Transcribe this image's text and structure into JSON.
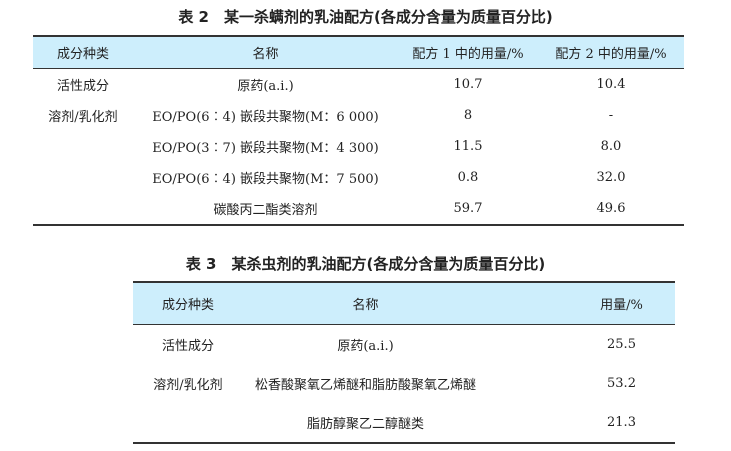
{
  "table2": {
    "title": "表 2　某一杀螨剂的乳油配方(各成分含量为质量百分比)",
    "headers": [
      "成分种类",
      "名称",
      "配方 1 中的用量/%",
      "配方 2 中的用量/%"
    ],
    "rows": [
      [
        "活性成分",
        "原药(a.i.)",
        "10.7",
        "10.4"
      ],
      [
        "溶剂/乳化剂",
        "EO/PO(6︰4) 嵌段共聚物(M：6 000)",
        "8",
        "-"
      ],
      [
        "",
        "EO/PO(3︰7) 嵌段共聚物(M：4 300)",
        "11.5",
        "8.0"
      ],
      [
        "",
        "EO/PO(6︰4) 嵌段共聚物(M：7 500)",
        "0.8",
        "32.0"
      ],
      [
        "",
        "碳酸丙二酯类溶剂",
        "59.7",
        "49.6"
      ]
    ]
  },
  "table3": {
    "title": "表 3　某杀虫剂的乳油配方(各成分含量为质量百分比)",
    "headers": [
      "成分种类",
      "名称",
      "用量/%"
    ],
    "rows": [
      [
        "活性成分",
        "原药(a.i.)",
        "25.5"
      ],
      [
        "溶剂/乳化剂",
        "松香酸聚氧乙烯醚和脂肪酸聚氧乙烯醚",
        "53.2"
      ],
      [
        "",
        "脂肪醇聚乙二醇醚类",
        "21.3"
      ]
    ]
  },
  "colors": {
    "header_band": "#cdeefc",
    "rule": "#333333"
  }
}
